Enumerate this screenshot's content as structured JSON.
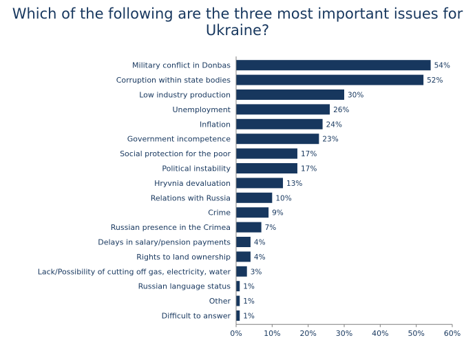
{
  "colors": {
    "bar": "#17375e",
    "text": "#17375e",
    "axis": "#7f7f7f"
  },
  "chart_data": {
    "type": "bar",
    "orientation": "horizontal",
    "title": "Which of the following are the three most important issues for Ukraine?",
    "categories": [
      "Military conflict in Donbas",
      "Corruption within state bodies",
      "Low industry production",
      "Unemployment",
      "Inflation",
      "Government incompetence",
      "Social protection for the poor",
      "Political instability",
      "Hryvnia devaluation",
      "Relations with Russia",
      "Crime",
      "Russian presence in the Crimea",
      "Delays in salary/pension payments",
      "Rights to land ownership",
      "Lack/Possibility of cutting off gas, electricity, water",
      "Russian language status",
      "Other",
      "Difficult to answer"
    ],
    "values": [
      54,
      52,
      30,
      26,
      24,
      23,
      17,
      17,
      13,
      10,
      9,
      7,
      4,
      4,
      3,
      1,
      1,
      1
    ],
    "value_labels": [
      "54%",
      "52%",
      "30%",
      "26%",
      "24%",
      "23%",
      "17%",
      "17%",
      "13%",
      "10%",
      "9%",
      "7%",
      "4%",
      "4%",
      "3%",
      "1%",
      "1%",
      "1%"
    ],
    "xlim": [
      0,
      60
    ],
    "xticks": [
      0,
      10,
      20,
      30,
      40,
      50,
      60
    ],
    "xtick_labels": [
      "0%",
      "10%",
      "20%",
      "30%",
      "40%",
      "50%",
      "60%"
    ],
    "grid": false,
    "legend": "none"
  }
}
